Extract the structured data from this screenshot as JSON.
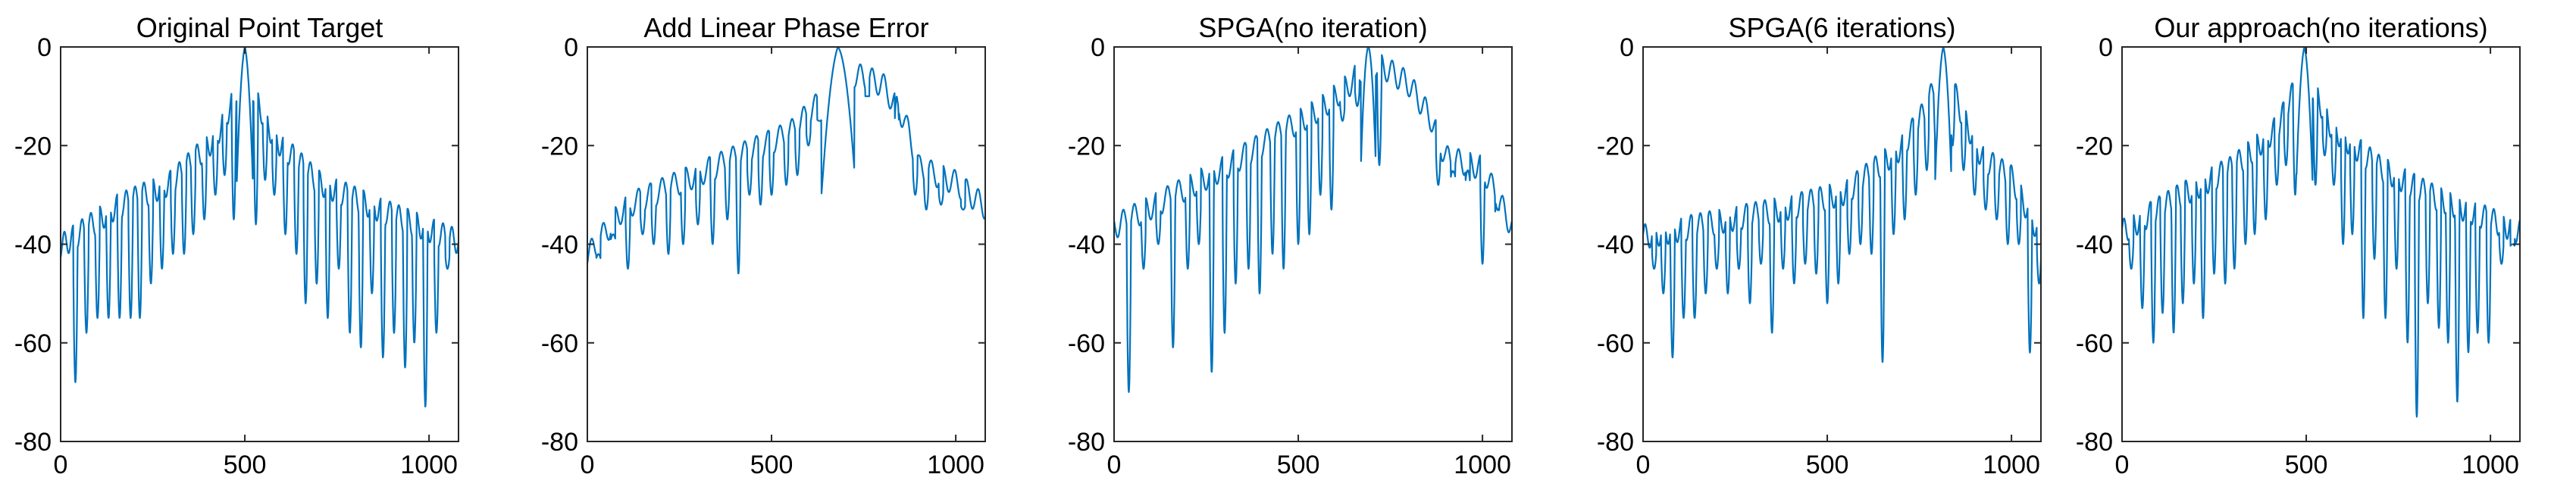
{
  "figure": {
    "style": "matlab-subplots",
    "line_color": "#0072BD"
  },
  "chart_data": [
    {
      "type": "line",
      "title": "Original Point Target",
      "xlim": [
        0,
        1080
      ],
      "ylim": [
        -80,
        0
      ],
      "xticks": [
        0,
        500,
        1000
      ],
      "xtick_labels": [
        "0",
        "500",
        "1000"
      ],
      "yticks": [
        0,
        -20,
        -40,
        -60,
        -80
      ],
      "ytick_labels": [
        "0",
        "-20",
        "-40",
        "-60",
        "-80"
      ],
      "profile": {
        "peak_x": 500,
        "mainlobe_halfwidth": 22,
        "lobe_spacing": 24,
        "envelope": [
          [
            0,
            -38
          ],
          [
            150,
            -30
          ],
          [
            300,
            -25
          ],
          [
            420,
            -16
          ],
          [
            470,
            -8
          ],
          [
            500,
            0
          ],
          [
            530,
            -8
          ],
          [
            580,
            -16
          ],
          [
            700,
            -25
          ],
          [
            850,
            -30
          ],
          [
            1080,
            -37
          ]
        ],
        "nulls": [
          [
            40,
            -68
          ],
          [
            70,
            -58
          ],
          [
            100,
            -55
          ],
          [
            130,
            -55
          ],
          [
            160,
            -55
          ],
          [
            190,
            -55
          ],
          [
            215,
            -55
          ],
          [
            245,
            -48
          ],
          [
            275,
            -45
          ],
          [
            305,
            -42
          ],
          [
            335,
            -42
          ],
          [
            360,
            -38
          ],
          [
            390,
            -35
          ],
          [
            420,
            -30
          ],
          [
            445,
            -26
          ],
          [
            470,
            -35
          ],
          [
            530,
            -36
          ],
          [
            555,
            -27
          ],
          [
            580,
            -30
          ],
          [
            610,
            -38
          ],
          [
            640,
            -42
          ],
          [
            665,
            -52
          ],
          [
            695,
            -48
          ],
          [
            725,
            -55
          ],
          [
            755,
            -45
          ],
          [
            785,
            -58
          ],
          [
            815,
            -61
          ],
          [
            845,
            -50
          ],
          [
            875,
            -63
          ],
          [
            905,
            -58
          ],
          [
            935,
            -65
          ],
          [
            960,
            -60
          ],
          [
            990,
            -73
          ],
          [
            1020,
            -58
          ],
          [
            1050,
            -45
          ]
        ]
      }
    },
    {
      "type": "line",
      "title": "Add Linear Phase Error",
      "xlim": [
        0,
        1080
      ],
      "ylim": [
        -80,
        0
      ],
      "xticks": [
        0,
        500,
        1000
      ],
      "xtick_labels": [
        "0",
        "500",
        "1000"
      ],
      "yticks": [
        0,
        -20,
        -40,
        -60,
        -80
      ],
      "ytick_labels": [
        "0",
        "-20",
        "-40",
        "-60",
        "-80"
      ],
      "profile": {
        "peak_x": 680,
        "mainlobe_halfwidth": 45,
        "lobe_spacing": 32,
        "envelope": [
          [
            0,
            -40
          ],
          [
            100,
            -30
          ],
          [
            250,
            -25
          ],
          [
            400,
            -20
          ],
          [
            550,
            -15
          ],
          [
            640,
            -8
          ],
          [
            680,
            0
          ],
          [
            720,
            -3
          ],
          [
            800,
            -5
          ],
          [
            860,
            -12
          ],
          [
            900,
            -22
          ],
          [
            1000,
            -25
          ],
          [
            1080,
            -30
          ]
        ],
        "nulls": [
          [
            30,
            -42
          ],
          [
            70,
            -38
          ],
          [
            110,
            -45
          ],
          [
            150,
            -38
          ],
          [
            180,
            -40
          ],
          [
            220,
            -42
          ],
          [
            260,
            -40
          ],
          [
            300,
            -36
          ],
          [
            340,
            -40
          ],
          [
            380,
            -35
          ],
          [
            410,
            -46
          ],
          [
            440,
            -30
          ],
          [
            470,
            -32
          ],
          [
            500,
            -30
          ],
          [
            540,
            -28
          ],
          [
            570,
            -26
          ],
          [
            600,
            -20
          ],
          [
            630,
            -15
          ],
          [
            760,
            -10
          ],
          [
            840,
            -10
          ],
          [
            890,
            -30
          ],
          [
            920,
            -33
          ],
          [
            960,
            -32
          ],
          [
            1020,
            -33
          ]
        ]
      }
    },
    {
      "type": "line",
      "title": "SPGA(no iteration)",
      "xlim": [
        0,
        1080
      ],
      "ylim": [
        -80,
        0
      ],
      "xticks": [
        0,
        500,
        1000
      ],
      "xtick_labels": [
        "0",
        "500",
        "1000"
      ],
      "yticks": [
        0,
        -20,
        -40,
        -60,
        -80
      ],
      "ytick_labels": [
        "0",
        "-20",
        "-40",
        "-60",
        "-80"
      ],
      "profile": {
        "peak_x": 690,
        "mainlobe_halfwidth": 20,
        "lobe_spacing": 30,
        "envelope": [
          [
            0,
            -34
          ],
          [
            150,
            -28
          ],
          [
            300,
            -22
          ],
          [
            450,
            -15
          ],
          [
            560,
            -10
          ],
          [
            640,
            -5
          ],
          [
            690,
            0
          ],
          [
            740,
            -2
          ],
          [
            800,
            -5
          ],
          [
            860,
            -12
          ],
          [
            900,
            -20
          ],
          [
            1000,
            -22
          ],
          [
            1080,
            -34
          ]
        ],
        "nulls": [
          [
            40,
            -70
          ],
          [
            80,
            -45
          ],
          [
            120,
            -40
          ],
          [
            160,
            -61
          ],
          [
            200,
            -45
          ],
          [
            230,
            -40
          ],
          [
            265,
            -66
          ],
          [
            300,
            -58
          ],
          [
            330,
            -48
          ],
          [
            365,
            -45
          ],
          [
            395,
            -50
          ],
          [
            430,
            -42
          ],
          [
            460,
            -45
          ],
          [
            500,
            -40
          ],
          [
            530,
            -38
          ],
          [
            560,
            -30
          ],
          [
            590,
            -33
          ],
          [
            620,
            -15
          ],
          [
            660,
            -12
          ],
          [
            720,
            -24
          ],
          [
            880,
            -28
          ],
          [
            920,
            -25
          ],
          [
            960,
            -25
          ],
          [
            1000,
            -44
          ],
          [
            1040,
            -30
          ]
        ]
      }
    },
    {
      "type": "line",
      "title": "SPGA(6 iterations)",
      "xlim": [
        0,
        1080
      ],
      "ylim": [
        -80,
        0
      ],
      "xticks": [
        0,
        500,
        1000
      ],
      "xtick_labels": [
        "0",
        "500",
        "1000"
      ],
      "yticks": [
        0,
        -20,
        -40,
        -60,
        -80
      ],
      "ytick_labels": [
        "0",
        "-20",
        "-40",
        "-60",
        "-80"
      ],
      "profile": {
        "peak_x": 815,
        "mainlobe_halfwidth": 22,
        "lobe_spacing": 25,
        "envelope": [
          [
            0,
            -36
          ],
          [
            200,
            -33
          ],
          [
            400,
            -30
          ],
          [
            550,
            -27
          ],
          [
            700,
            -18
          ],
          [
            770,
            -10
          ],
          [
            815,
            0
          ],
          [
            860,
            -10
          ],
          [
            920,
            -20
          ],
          [
            1000,
            -24
          ],
          [
            1080,
            -36
          ]
        ],
        "nulls": [
          [
            30,
            -45
          ],
          [
            55,
            -50
          ],
          [
            80,
            -63
          ],
          [
            110,
            -55
          ],
          [
            140,
            -55
          ],
          [
            170,
            -50
          ],
          [
            200,
            -45
          ],
          [
            230,
            -50
          ],
          [
            260,
            -45
          ],
          [
            290,
            -52
          ],
          [
            320,
            -44
          ],
          [
            350,
            -58
          ],
          [
            380,
            -45
          ],
          [
            410,
            -48
          ],
          [
            440,
            -44
          ],
          [
            470,
            -46
          ],
          [
            500,
            -52
          ],
          [
            530,
            -48
          ],
          [
            560,
            -42
          ],
          [
            590,
            -40
          ],
          [
            620,
            -42
          ],
          [
            650,
            -64
          ],
          [
            680,
            -38
          ],
          [
            710,
            -35
          ],
          [
            740,
            -30
          ],
          [
            770,
            -25
          ],
          [
            795,
            -20
          ],
          [
            840,
            -20
          ],
          [
            870,
            -25
          ],
          [
            900,
            -30
          ],
          [
            930,
            -33
          ],
          [
            960,
            -35
          ],
          [
            990,
            -40
          ],
          [
            1020,
            -40
          ],
          [
            1050,
            -62
          ],
          [
            1075,
            -48
          ]
        ]
      }
    },
    {
      "type": "line",
      "title": "Our approach(no iterations)",
      "xlim": [
        0,
        1080
      ],
      "ylim": [
        -80,
        0
      ],
      "xticks": [
        0,
        500,
        1000
      ],
      "xtick_labels": [
        "0",
        "500",
        "1000"
      ],
      "yticks": [
        0,
        -20,
        -40,
        -60,
        -80
      ],
      "ytick_labels": [
        "0",
        "-20",
        "-40",
        "-60",
        "-80"
      ],
      "profile": {
        "peak_x": 495,
        "mainlobe_halfwidth": 22,
        "lobe_spacing": 24,
        "envelope": [
          [
            0,
            -35
          ],
          [
            150,
            -28
          ],
          [
            300,
            -22
          ],
          [
            420,
            -14
          ],
          [
            470,
            -6
          ],
          [
            495,
            0
          ],
          [
            520,
            -6
          ],
          [
            570,
            -14
          ],
          [
            700,
            -22
          ],
          [
            850,
            -28
          ],
          [
            1080,
            -35
          ]
        ],
        "nulls": [
          [
            25,
            -45
          ],
          [
            55,
            -53
          ],
          [
            85,
            -60
          ],
          [
            110,
            -54
          ],
          [
            140,
            -58
          ],
          [
            165,
            -52
          ],
          [
            195,
            -48
          ],
          [
            220,
            -55
          ],
          [
            250,
            -46
          ],
          [
            280,
            -48
          ],
          [
            305,
            -45
          ],
          [
            335,
            -40
          ],
          [
            360,
            -38
          ],
          [
            390,
            -35
          ],
          [
            420,
            -28
          ],
          [
            445,
            -24
          ],
          [
            470,
            -30
          ],
          [
            525,
            -28
          ],
          [
            550,
            -22
          ],
          [
            575,
            -28
          ],
          [
            600,
            -40
          ],
          [
            625,
            -38
          ],
          [
            655,
            -55
          ],
          [
            685,
            -43
          ],
          [
            715,
            -55
          ],
          [
            745,
            -45
          ],
          [
            775,
            -60
          ],
          [
            800,
            -75
          ],
          [
            830,
            -52
          ],
          [
            860,
            -57
          ],
          [
            885,
            -60
          ],
          [
            910,
            -72
          ],
          [
            940,
            -62
          ],
          [
            965,
            -58
          ],
          [
            995,
            -60
          ],
          [
            1030,
            -44
          ],
          [
            1060,
            -40
          ]
        ]
      }
    }
  ]
}
